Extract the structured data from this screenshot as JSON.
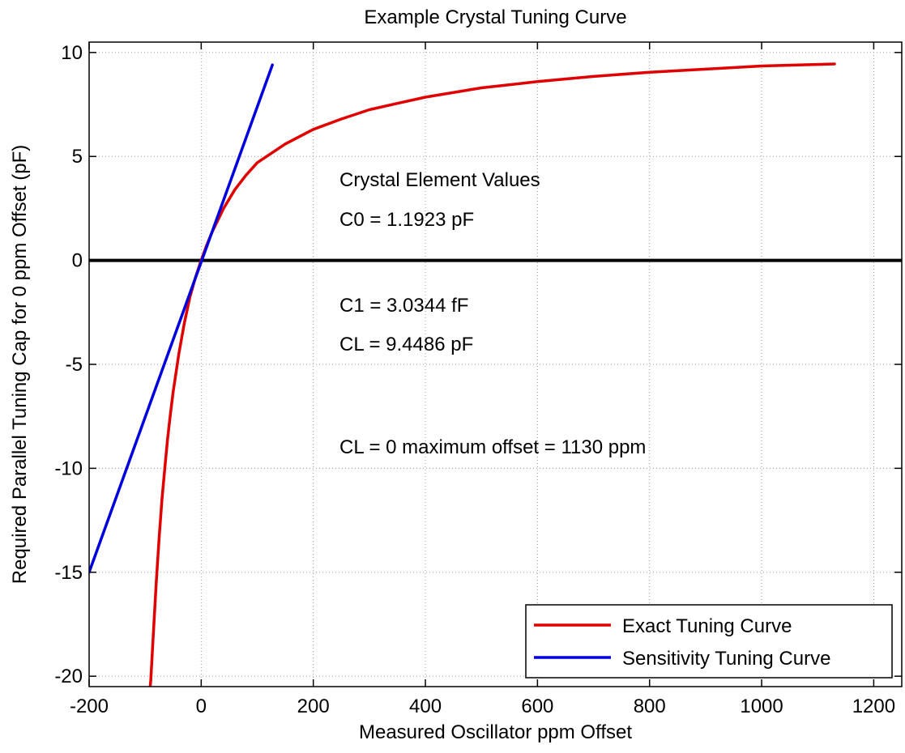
{
  "chart_data": {
    "type": "line",
    "title": "Example Crystal Tuning Curve",
    "xlabel": "Measured Oscillator ppm Offset",
    "ylabel": "Required Parallel Tuning Cap for 0 ppm Offset (pF)",
    "xlim": [
      -200,
      1250
    ],
    "ylim": [
      -20.5,
      10.5
    ],
    "xticks": [
      -200,
      0,
      200,
      400,
      600,
      800,
      1000,
      1200
    ],
    "yticks": [
      10,
      5,
      0,
      -5,
      -10,
      -15,
      -20
    ],
    "grid": true,
    "legend_position": "bottom-right",
    "series": [
      {
        "name": "Exact Tuning Curve",
        "color": "#e00000",
        "points": [
          [
            -91,
            -20.5
          ],
          [
            -90,
            -20.2
          ],
          [
            -85,
            -17.8
          ],
          [
            -80,
            -15.4
          ],
          [
            -75,
            -13.3
          ],
          [
            -70,
            -11.5
          ],
          [
            -65,
            -10.0
          ],
          [
            -60,
            -8.6
          ],
          [
            -55,
            -7.4
          ],
          [
            -50,
            -6.3
          ],
          [
            -40,
            -4.5
          ],
          [
            -30,
            -3.0
          ],
          [
            -20,
            -1.75
          ],
          [
            -10,
            -0.8
          ],
          [
            0,
            0.0
          ],
          [
            10,
            0.75
          ],
          [
            20,
            1.4
          ],
          [
            40,
            2.5
          ],
          [
            60,
            3.4
          ],
          [
            80,
            4.1
          ],
          [
            100,
            4.7
          ],
          [
            150,
            5.6
          ],
          [
            200,
            6.3
          ],
          [
            250,
            6.8
          ],
          [
            300,
            7.25
          ],
          [
            350,
            7.55
          ],
          [
            400,
            7.85
          ],
          [
            500,
            8.3
          ],
          [
            600,
            8.6
          ],
          [
            700,
            8.85
          ],
          [
            800,
            9.05
          ],
          [
            900,
            9.2
          ],
          [
            1000,
            9.35
          ],
          [
            1130,
            9.45
          ]
        ]
      },
      {
        "name": "Sensitivity Tuning Curve",
        "color": "#0000dd",
        "points": [
          [
            -200,
            -15.0
          ],
          [
            127,
            9.4
          ]
        ]
      }
    ],
    "annotations": [
      "Crystal Element Values",
      "C0 = 1.1923 pF",
      "C1 = 3.0344 fF",
      "CL = 9.4486   pF",
      "CL = 0 maximum offset = 1130 ppm"
    ]
  }
}
